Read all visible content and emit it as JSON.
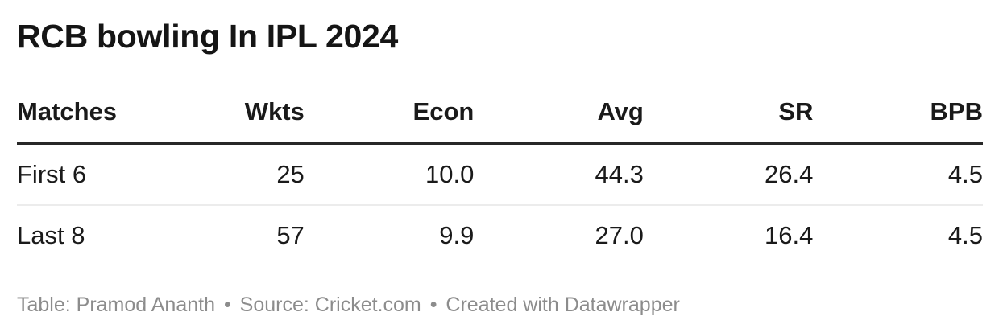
{
  "title": "RCB bowling In IPL 2024",
  "table": {
    "columns": [
      {
        "label": "Matches",
        "align": "left"
      },
      {
        "label": "Wkts",
        "align": "right"
      },
      {
        "label": "Econ",
        "align": "right"
      },
      {
        "label": "Avg",
        "align": "right"
      },
      {
        "label": "SR",
        "align": "right"
      },
      {
        "label": "BPB",
        "align": "right"
      }
    ],
    "rows": [
      {
        "cells": [
          "First 6",
          "25",
          "10.0",
          "44.3",
          "26.4",
          "4.5"
        ]
      },
      {
        "cells": [
          "Last 8",
          "57",
          "9.9",
          "27.0",
          "16.4",
          "4.5"
        ]
      }
    ]
  },
  "footer": {
    "table_label": "Table: Pramod Ananth",
    "separator": "•",
    "source_label": "Source: Cricket.com",
    "attribution": "Created with Datawrapper"
  },
  "colors": {
    "title_text": "#151515",
    "body_text": "#1a1a1a",
    "header_rule": "#282828",
    "row_divider": "#ececec",
    "footer_text": "#8c8c8c",
    "background": "#ffffff"
  }
}
